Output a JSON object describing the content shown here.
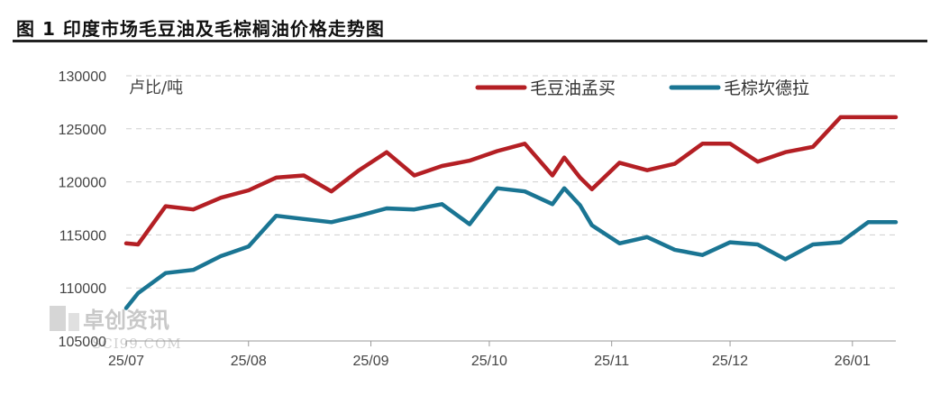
{
  "title": "图 1 印度市场毛豆油及毛棕榈油价格走势图",
  "watermark": {
    "cn": "卓创资讯",
    "en": "SCI99.COM"
  },
  "chart_data": {
    "type": "line",
    "unit_label": "卢比/吨",
    "ylim": [
      105000,
      130000
    ],
    "y_ticks": [
      "130000",
      "125000",
      "120000",
      "115000",
      "110000",
      "105000"
    ],
    "x_ticks": [
      "25/07",
      "25/08",
      "25/09",
      "25/10",
      "25/11",
      "25/12",
      "26/01"
    ],
    "x": [
      "2025-07-01",
      "2025-07-04",
      "2025-07-11",
      "2025-07-18",
      "2025-07-25",
      "2025-08-01",
      "2025-08-08",
      "2025-08-15",
      "2025-08-22",
      "2025-08-29",
      "2025-09-05",
      "2025-09-12",
      "2025-09-19",
      "2025-09-26",
      "2025-10-03",
      "2025-10-10",
      "2025-10-17",
      "2025-10-20",
      "2025-10-24",
      "2025-10-27",
      "2025-11-03",
      "2025-11-10",
      "2025-11-17",
      "2025-11-24",
      "2025-12-01",
      "2025-12-08",
      "2025-12-15",
      "2025-12-22",
      "2025-12-29",
      "2026-01-05",
      "2026-01-12"
    ],
    "grid": true,
    "legend_position": "top-right",
    "series": [
      {
        "name": "毛豆油孟买",
        "color": "#b41f24",
        "values": [
          114200,
          114100,
          117700,
          117400,
          118500,
          119200,
          120400,
          120600,
          119100,
          121100,
          122800,
          120600,
          121500,
          122000,
          122900,
          123600,
          120600,
          122300,
          120400,
          119300,
          121800,
          121100,
          121700,
          123600,
          123600,
          121900,
          122800,
          123300,
          126100,
          126100,
          126100
        ]
      },
      {
        "name": "毛棕坎德拉",
        "color": "#1a7593",
        "values": [
          108100,
          109500,
          111400,
          111700,
          113000,
          113900,
          116800,
          116500,
          116200,
          116800,
          117500,
          117400,
          117900,
          116000,
          119400,
          119100,
          117900,
          119400,
          117800,
          115900,
          114200,
          114800,
          113600,
          113100,
          114300,
          114100,
          112700,
          114100,
          114300,
          116200,
          116200
        ]
      }
    ]
  }
}
